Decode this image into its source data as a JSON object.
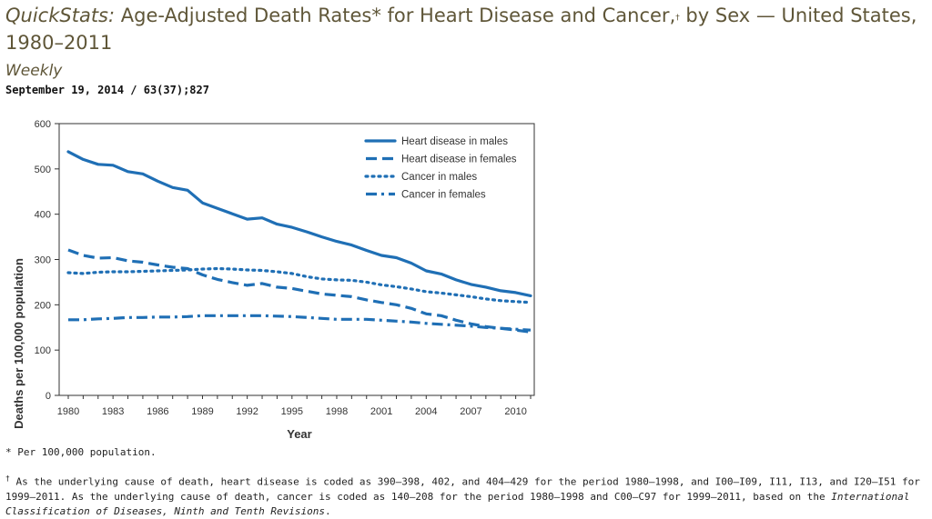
{
  "header": {
    "title_italic": "QuickStats:",
    "title_main": " Age-Adjusted Death Rates* for Heart Disease and Cancer,",
    "title_dagger": "†",
    "title_tail": " by Sex — United States, 1980–2011",
    "weekly": "Weekly",
    "publication": "September 19, 2014 / 63(37);827"
  },
  "footnotes": {
    "star": "* Per 100,000 population.",
    "dagger_mark": "†",
    "dagger_text_1": " As the underlying cause of death, heart disease is coded as 390–398, 402, and 404–429 for the period 1980–1998, and I00–I09, I11, I13, and I20–I51 for 1999–2011. As the underlying cause of death, cancer is coded as 140–208 for the period 1980–1998 and C00–C97 for 1999–2011, based on the ",
    "dagger_text_italic": "International Classification of Diseases, Ninth and Tenth Revisions",
    "dagger_text_end": "."
  },
  "chart_data": {
    "type": "line",
    "title": "",
    "xlabel": "Year",
    "ylabel": "Deaths per 100,000 population",
    "xlim": [
      1980,
      2011
    ],
    "ylim": [
      0,
      600
    ],
    "xticks": [
      1980,
      1983,
      1986,
      1989,
      1992,
      1995,
      1998,
      2001,
      2004,
      2007,
      2010
    ],
    "yticks": [
      0,
      100,
      200,
      300,
      400,
      500,
      600
    ],
    "legend_position": "top-right",
    "color": "#1f6fb5",
    "x": [
      1980,
      1981,
      1982,
      1983,
      1984,
      1985,
      1986,
      1987,
      1988,
      1989,
      1990,
      1991,
      1992,
      1993,
      1994,
      1995,
      1996,
      1997,
      1998,
      1999,
      2000,
      2001,
      2002,
      2003,
      2004,
      2005,
      2006,
      2007,
      2008,
      2009,
      2010,
      2011
    ],
    "series": [
      {
        "name": "Heart disease in males",
        "style": "solid",
        "values": [
          538,
          521,
          510,
          508,
          494,
          489,
          473,
          459,
          453,
          425,
          413,
          401,
          389,
          392,
          378,
          371,
          361,
          350,
          340,
          332,
          320,
          309,
          304,
          292,
          275,
          268,
          255,
          245,
          239,
          231,
          227,
          220
        ]
      },
      {
        "name": "Heart disease in females",
        "style": "dashed",
        "values": [
          321,
          309,
          303,
          304,
          297,
          294,
          288,
          283,
          280,
          266,
          256,
          249,
          243,
          247,
          239,
          236,
          230,
          224,
          221,
          218,
          211,
          205,
          200,
          192,
          180,
          176,
          166,
          158,
          152,
          148,
          144,
          140
        ]
      },
      {
        "name": "Cancer in males",
        "style": "dotted",
        "values": [
          271,
          269,
          272,
          273,
          273,
          274,
          275,
          276,
          277,
          279,
          280,
          279,
          277,
          276,
          273,
          269,
          262,
          257,
          255,
          254,
          250,
          244,
          240,
          235,
          229,
          226,
          222,
          218,
          213,
          209,
          207,
          205
        ]
      },
      {
        "name": "Cancer in females",
        "style": "dashdot",
        "values": [
          167,
          167,
          169,
          170,
          172,
          172,
          173,
          173,
          174,
          176,
          176,
          176,
          176,
          176,
          175,
          174,
          172,
          170,
          168,
          168,
          168,
          166,
          164,
          162,
          159,
          157,
          155,
          153,
          150,
          148,
          146,
          144
        ]
      }
    ]
  }
}
